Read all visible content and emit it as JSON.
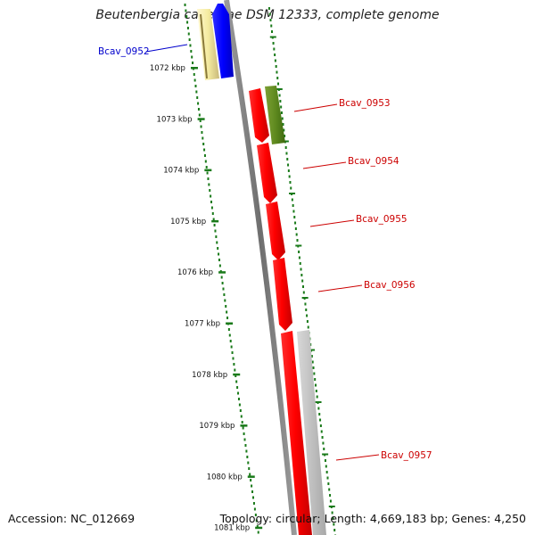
{
  "title": "Beutenbergia cavernae DSM 12333, complete genome",
  "footer": {
    "accession": "Accession: NC_012669",
    "stats": "Topology: circular; Length: 4,669,183 bp; Genes: 4,250"
  },
  "ticks": [
    "1072 kbp",
    "1073 kbp",
    "1074 kbp",
    "1075 kbp",
    "1076 kbp",
    "1077 kbp",
    "1078 kbp",
    "1079 kbp",
    "1080 kbp",
    "1081 kbp"
  ],
  "genes": [
    {
      "id": "Bcav_0952",
      "strand": "forward",
      "color": "#0000ee"
    },
    {
      "id": "Bcav_0953",
      "strand": "reverse",
      "color": "#dd0000"
    },
    {
      "id": "Bcav_0954",
      "strand": "reverse",
      "color": "#dd0000"
    },
    {
      "id": "Bcav_0955",
      "strand": "reverse",
      "color": "#dd0000"
    },
    {
      "id": "Bcav_0956",
      "strand": "reverse",
      "color": "#dd0000"
    },
    {
      "id": "Bcav_0957",
      "strand": "reverse",
      "color": "#dd0000"
    }
  ],
  "colors": {
    "forward_cds": "#0000ee",
    "reverse_cds": "#ee0000",
    "forward_gene_shadow": "#f2eaa0",
    "reverse_gene_shadow": "#6b8e23",
    "tick": "#1a7a1a",
    "backbone": "#777777",
    "label_forward": "#0000cc",
    "label_reverse": "#cc0000"
  }
}
